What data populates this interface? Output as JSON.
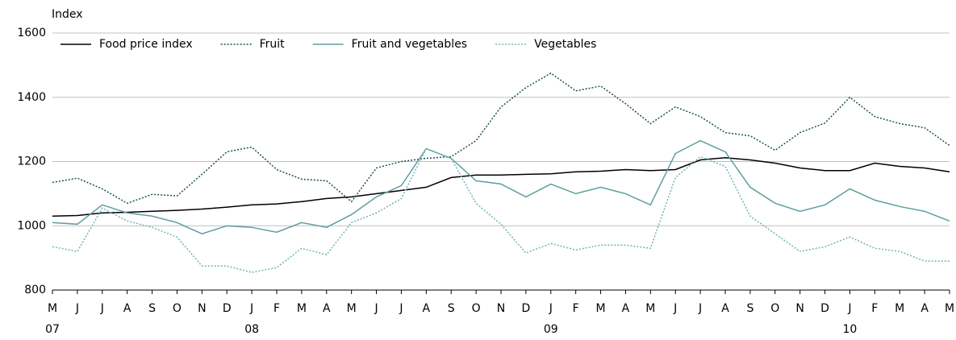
{
  "chart_data": {
    "type": "line",
    "y_label": "Index",
    "categories": [
      "M",
      "J",
      "J",
      "A",
      "S",
      "O",
      "N",
      "D",
      "J",
      "F",
      "M",
      "A",
      "M",
      "J",
      "J",
      "A",
      "S",
      "O",
      "N",
      "D",
      "J",
      "F",
      "M",
      "A",
      "M",
      "J",
      "J",
      "A",
      "S",
      "O",
      "N",
      "D",
      "J",
      "F",
      "M",
      "A",
      "M"
    ],
    "x_groups": [
      {
        "label": "07",
        "start": 0
      },
      {
        "label": "08",
        "start": 8
      },
      {
        "label": "09",
        "start": 20
      },
      {
        "label": "10",
        "start": 32
      }
    ],
    "ylim": [
      800,
      1600
    ],
    "yticks": [
      800,
      1000,
      1200,
      1400,
      1600
    ],
    "grid": true,
    "legend": "top",
    "series": [
      {
        "name": "Food price index",
        "color": "#000000",
        "dash": "solid",
        "values": [
          1030,
          1032,
          1040,
          1042,
          1045,
          1048,
          1052,
          1058,
          1065,
          1068,
          1075,
          1085,
          1090,
          1100,
          1110,
          1120,
          1150,
          1158,
          1158,
          1160,
          1162,
          1168,
          1170,
          1175,
          1172,
          1175,
          1205,
          1212,
          1205,
          1195,
          1180,
          1172,
          1172,
          1195,
          1185,
          1180,
          1168
        ]
      },
      {
        "name": "Fruit",
        "color": "#1f4f4f",
        "dash": "dotted",
        "values": [
          1135,
          1148,
          1115,
          1070,
          1098,
          1093,
          1160,
          1230,
          1245,
          1175,
          1145,
          1140,
          1075,
          1180,
          1200,
          1210,
          1215,
          1265,
          1370,
          1430,
          1475,
          1420,
          1435,
          1380,
          1318,
          1370,
          1340,
          1290,
          1280,
          1235,
          1290,
          1320,
          1400,
          1340,
          1318,
          1305,
          1250
        ]
      },
      {
        "name": "Fruit and vegetables",
        "color": "#5f9ea0",
        "dash": "solid",
        "values": [
          1010,
          1005,
          1065,
          1040,
          1030,
          1010,
          975,
          1000,
          995,
          980,
          1010,
          995,
          1035,
          1090,
          1125,
          1240,
          1210,
          1140,
          1130,
          1090,
          1130,
          1100,
          1120,
          1100,
          1065,
          1225,
          1265,
          1230,
          1120,
          1070,
          1045,
          1065,
          1115,
          1080,
          1060,
          1045,
          1015
        ]
      },
      {
        "name": "Vegetables",
        "color": "#6fb5b5",
        "dash": "dotted",
        "values": [
          935,
          920,
          1055,
          1015,
          995,
          965,
          875,
          875,
          855,
          870,
          930,
          910,
          1010,
          1040,
          1085,
          1240,
          1210,
          1070,
          1005,
          915,
          945,
          925,
          940,
          940,
          930,
          1150,
          1215,
          1185,
          1030,
          975,
          920,
          935,
          965,
          930,
          920,
          890,
          890
        ]
      }
    ]
  }
}
